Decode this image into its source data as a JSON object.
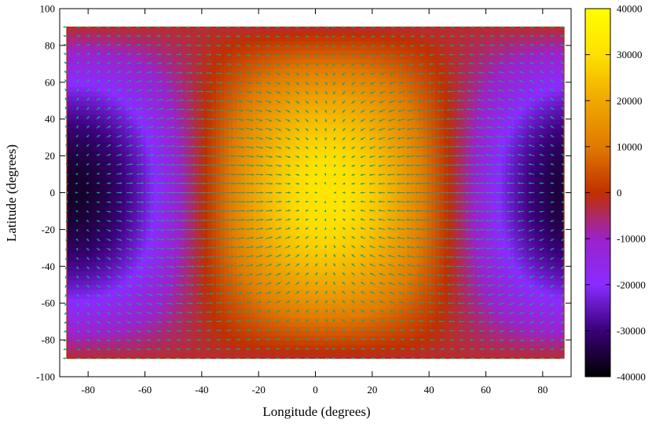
{
  "chart_data": {
    "type": "heatmap",
    "title": "",
    "xlabel": "Longitude (degrees)",
    "ylabel": "Latitude (degrees)",
    "xlim": [
      -90,
      90
    ],
    "ylim": [
      -100,
      100
    ],
    "xticks": [
      -80,
      -60,
      -40,
      -20,
      0,
      20,
      40,
      60,
      80
    ],
    "yticks": [
      -100,
      -80,
      -60,
      -40,
      -20,
      0,
      20,
      40,
      60,
      80,
      100
    ],
    "data_extent": {
      "x": [
        -87.5,
        87.5
      ],
      "y": [
        -90,
        90
      ]
    },
    "field": {
      "description_formula": "value = amplitude * cos(latitude) * cos(longitude * 2)",
      "amplitude": 40000,
      "center_longitude": 4
    },
    "colorbar": {
      "range": [
        -40000,
        40000
      ],
      "ticks": [
        -40000,
        -30000,
        -20000,
        -10000,
        0,
        10000,
        20000,
        30000,
        40000
      ],
      "colors": [
        "#000000",
        "#3a0078",
        "#8a2cff",
        "#9b22c8",
        "#c03000",
        "#e07a00",
        "#f0a800",
        "#ffe000",
        "#ffff00"
      ]
    },
    "vector_field": {
      "color": "#1a9e86",
      "lon_step": 3.5,
      "lat_step": 5
    },
    "grid": false,
    "legend": "none"
  }
}
